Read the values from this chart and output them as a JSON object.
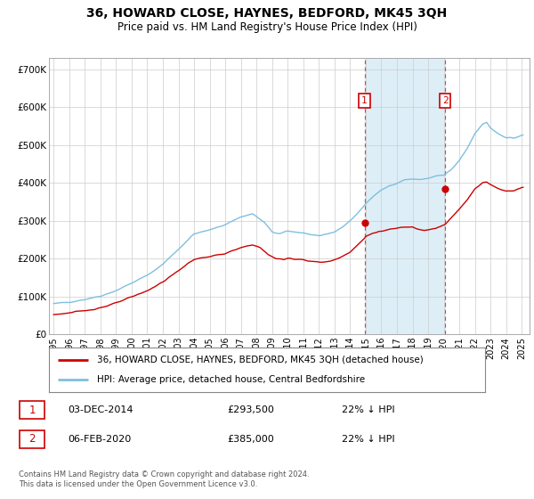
{
  "title": "36, HOWARD CLOSE, HAYNES, BEDFORD, MK45 3QH",
  "subtitle": "Price paid vs. HM Land Registry's House Price Index (HPI)",
  "footer": "Contains HM Land Registry data © Crown copyright and database right 2024.\nThis data is licensed under the Open Government Licence v3.0.",
  "legend_line1": "36, HOWARD CLOSE, HAYNES, BEDFORD, MK45 3QH (detached house)",
  "legend_line2": "HPI: Average price, detached house, Central Bedfordshire",
  "sale1_date": "03-DEC-2014",
  "sale1_price": "£293,500",
  "sale1_hpi": "22% ↓ HPI",
  "sale2_date": "06-FEB-2020",
  "sale2_price": "£385,000",
  "sale2_hpi": "22% ↓ HPI",
  "price_color": "#cc0000",
  "hpi_color": "#7fbfdf",
  "hpi_fill_color": "#ddeef7",
  "marker1_x": 2014.92,
  "marker1_y": 293500,
  "marker2_x": 2020.09,
  "marker2_y": 385000,
  "ylim": [
    0,
    730000
  ],
  "xlim_start": 1994.7,
  "xlim_end": 2025.5,
  "yticks": [
    0,
    100000,
    200000,
    300000,
    400000,
    500000,
    600000,
    700000
  ],
  "ytick_labels": [
    "£0",
    "£100K",
    "£200K",
    "£300K",
    "£400K",
    "£500K",
    "£600K",
    "£700K"
  ],
  "xticks": [
    1995,
    1996,
    1997,
    1998,
    1999,
    2000,
    2001,
    2002,
    2003,
    2004,
    2005,
    2006,
    2007,
    2008,
    2009,
    2010,
    2011,
    2012,
    2013,
    2014,
    2015,
    2016,
    2017,
    2018,
    2019,
    2020,
    2021,
    2022,
    2023,
    2024,
    2025
  ],
  "shade_x1": 2014.92,
  "shade_x2": 2020.09
}
